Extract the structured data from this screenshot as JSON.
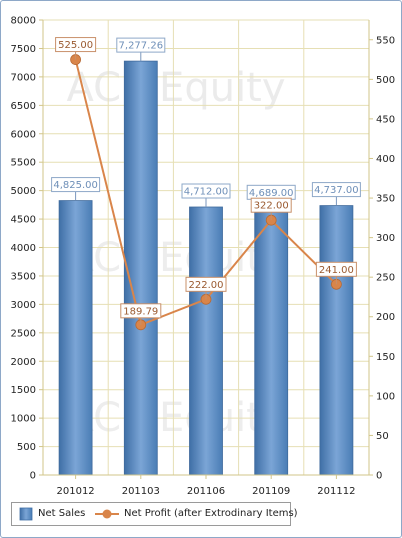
{
  "watermark": "ACE Equity",
  "chart_data": {
    "type": "bar+line",
    "categories": [
      "201012",
      "201103",
      "201106",
      "201109",
      "201112"
    ],
    "series": [
      {
        "name": "Net Sales",
        "type": "bar",
        "axis": "left",
        "values": [
          4825.0,
          7277.26,
          4712.0,
          4689.0,
          4737.0
        ],
        "labels": [
          "4,825.00",
          "7,277.26",
          "4,712.00",
          "4,689.00",
          "4,737.00"
        ],
        "color": "#5b8fc4"
      },
      {
        "name": "Net Profit (after Extrodinary Items)",
        "type": "line",
        "axis": "right",
        "values": [
          525.0,
          189.79,
          222.0,
          322.0,
          241.0
        ],
        "labels": [
          "525.00",
          "189.79",
          "222.00",
          "322.00",
          "241.00"
        ],
        "color": "#d9854a"
      }
    ],
    "y_left": {
      "min": 0,
      "max": 8000,
      "ticks": [
        "0",
        "500",
        "1000",
        "1500",
        "2000",
        "2500",
        "3000",
        "3500",
        "4000",
        "4500",
        "5000",
        "5500",
        "6000",
        "6500",
        "7000",
        "7500",
        "8000"
      ]
    },
    "y_right": {
      "min": 0,
      "max": 575,
      "ticks": [
        "0",
        "50",
        "100",
        "150",
        "200",
        "250",
        "300",
        "350",
        "400",
        "450",
        "500",
        "550"
      ]
    },
    "grid": true,
    "legend_position": "bottom-left",
    "colors": {
      "grid": "#e6dfb4",
      "axis": "#d2c68a",
      "bar_label": "#6e8fb8",
      "line_label": "#9a5a30"
    }
  }
}
